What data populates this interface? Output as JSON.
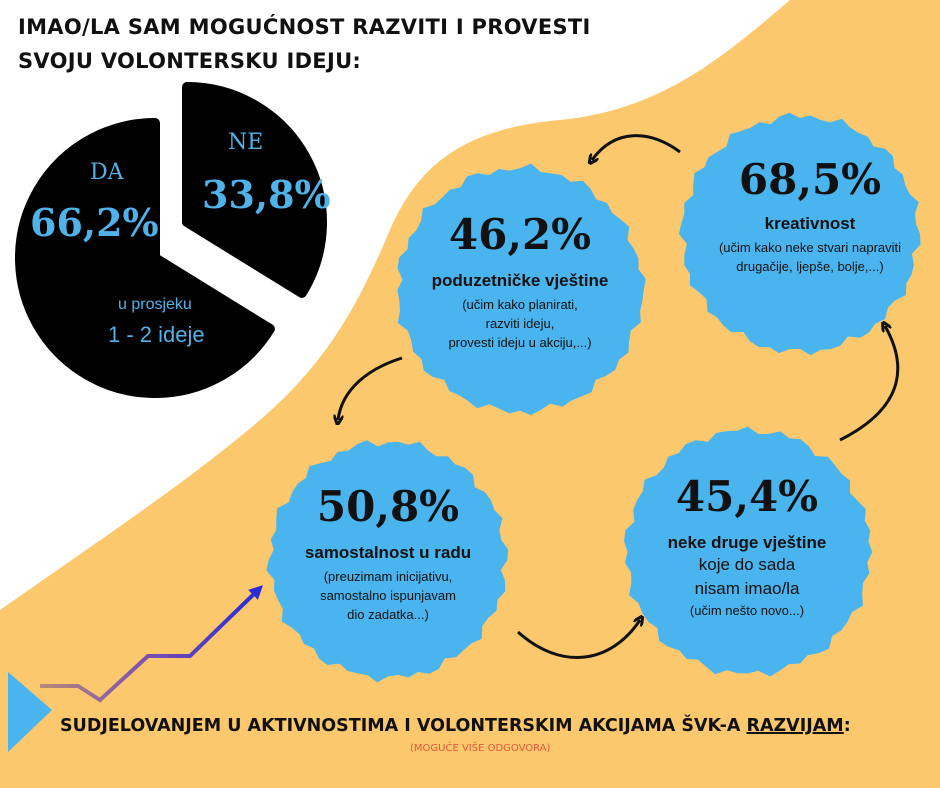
{
  "header": {
    "title_line1": "IMAO/LA SAM MOGUĆNOST RAZVITI I PROVESTI",
    "title_line2": "SVOJU VOLONTERSKU IDEJU:"
  },
  "chart_data": [
    {
      "type": "pie",
      "categories": [
        "DA",
        "NE"
      ],
      "values": [
        66.2,
        33.8
      ],
      "value_labels": [
        "66,2%",
        "33,8%"
      ],
      "note_line1": "u prosjeku",
      "note_line2": "1 - 2 ideje",
      "colors": {
        "slices": "#000000",
        "labels": "#4fb3ea"
      }
    },
    {
      "type": "bar",
      "categories": [
        "kreativnost",
        "poduzetničke vještine",
        "samostalnost u radu",
        "neke druge vještine"
      ],
      "values": [
        68.5,
        46.2,
        50.8,
        45.4
      ],
      "value_labels": [
        "68,5%",
        "46,2%",
        "50,8%",
        "45,4%"
      ],
      "descriptions": [
        [
          "(učim kako neke stvari napraviti",
          "drugačije, ljepše, bolje,...)"
        ],
        [
          "(učim kako planirati,",
          "razviti ideju,",
          "provesti ideju u akciju,...)"
        ],
        [
          "(preuzimam inicijativu,",
          "samostalno ispunjavam",
          "dio zadatka...)"
        ],
        [
          "koje do sada",
          "nisam imao/la",
          "(učim nešto novo...)"
        ]
      ],
      "colors": {
        "circles": "#4ab4ef",
        "background_shape": "#fbc86e"
      }
    }
  ],
  "footer": {
    "main_text": "SUDJELOVANJEM U AKTIVNOSTIMA I VOLONTERSKIM AKCIJAMA ŠVK-A ",
    "underlined": "RAZVIJAM",
    "colon": ":",
    "note": "(MOGUĆE VIŠE ODGOVORA)"
  },
  "colors": {
    "accent_blue": "#4ab4ef",
    "sand": "#fbc86e",
    "note_red": "#e05a3a",
    "arrow_start": "#b07a6a",
    "arrow_end": "#2b2bd6"
  }
}
